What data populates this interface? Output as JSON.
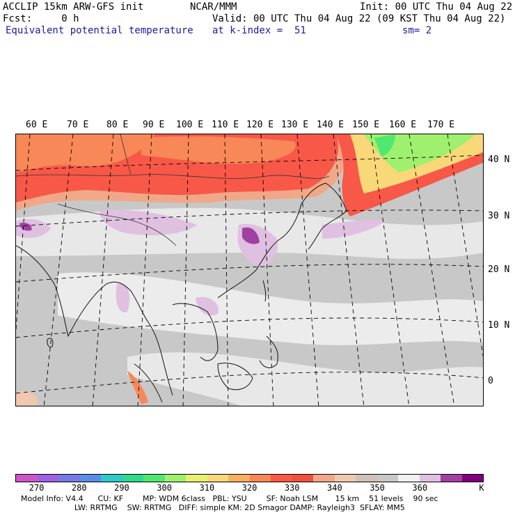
{
  "header": {
    "model_line": "ACCLIP 15km ARW-GFS init",
    "org": "NCAR/MMM",
    "init": "Init: 00 UTC Thu 04 Aug 22",
    "fcst": "Fcst:     0 h",
    "valid": "Valid: 00 UTC Thu 04 Aug 22 (09 KST Thu 04 Aug 22)",
    "field": "Equivalent potential temperature",
    "level": "at k-index =  51",
    "smooth": "sm= 2"
  },
  "map": {
    "lon_labels": [
      "60 E",
      "70 E",
      "80 E",
      "90 E",
      "100 E",
      "110 E",
      "120 E",
      "130 E",
      "140 E",
      "150 E",
      "160 E",
      "170 E"
    ],
    "lat_labels": [
      "40 N",
      "30 N",
      "20 N",
      "10 N",
      "0"
    ]
  },
  "colorbar": {
    "colors": [
      "#cc55cc",
      "#a060e0",
      "#7878e8",
      "#5a8ce8",
      "#30c8c8",
      "#30d88c",
      "#50e870",
      "#a0f070",
      "#e8f070",
      "#f8d878",
      "#f8b060",
      "#f88858",
      "#f85848",
      "#f05040",
      "#f0a888",
      "#f0c8b0",
      "#d0c0b8",
      "#c8c8c8",
      "#f0f0f0",
      "#e0c0e0",
      "#a040a0",
      "#800080"
    ],
    "ticks": [
      "270",
      "280",
      "290",
      "300",
      "310",
      "320",
      "330",
      "340",
      "350",
      "360"
    ],
    "unit": "K"
  },
  "footer": {
    "line1": "Model Info: V4.4      CU: KF        MP: WDM 6class   PBL: YSU        SF: Noah LSM       15 km    51 levels    90 sec",
    "line2": "                      LW: RRTMG    SW: RRTMG   DIFF: simple KM: 2D Smagor DAMP: Rayleigh3  SFLAY: MM5"
  }
}
